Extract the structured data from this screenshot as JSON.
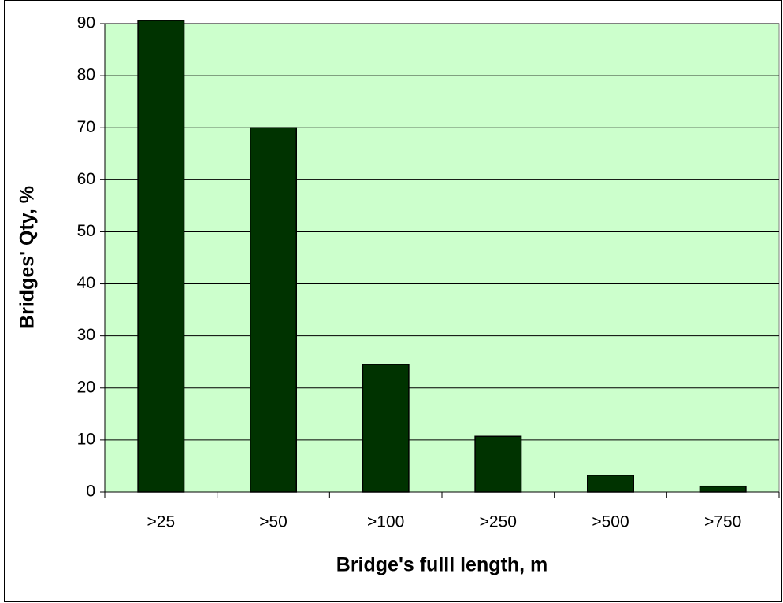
{
  "chart_data": {
    "type": "bar",
    "x_label": "Bridge's fulll length, m",
    "y_label": "Bridges' Qty, %",
    "categories": [
      ">25",
      ">50",
      ">100",
      ">250",
      ">500",
      ">750"
    ],
    "values": [
      90.6,
      70,
      24.5,
      10.7,
      3.2,
      1.1
    ],
    "color": "#003300",
    "background": "#ccffcc",
    "ylim": [
      0,
      90
    ],
    "yticks": [
      0,
      10,
      20,
      30,
      40,
      50,
      60,
      70,
      80,
      90
    ],
    "grid": true
  }
}
